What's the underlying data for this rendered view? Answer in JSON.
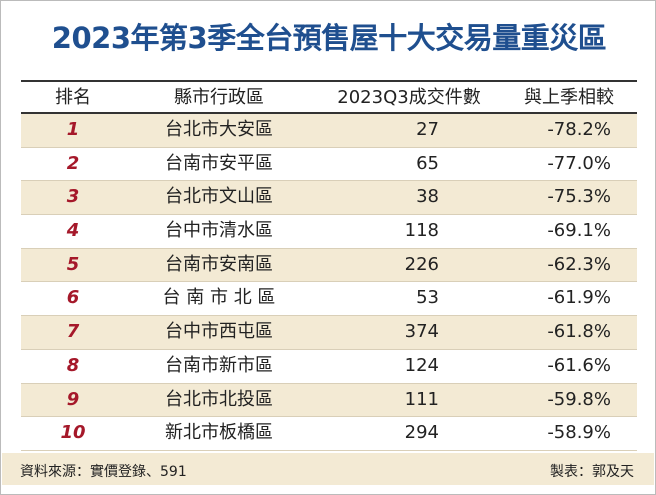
{
  "header": {
    "title": "2023年第3季全台預售屋十大交易量重災區"
  },
  "table": {
    "columns": [
      "排名",
      "縣市行政區",
      "2023Q3成交件數",
      "與上季相較"
    ],
    "rows": [
      [
        "1",
        "台北市大安區",
        "27",
        "-78.2%"
      ],
      [
        "2",
        "台南市安平區",
        "65",
        "-77.0%"
      ],
      [
        "3",
        "台北市文山區",
        "38",
        "-75.3%"
      ],
      [
        "4",
        "台中市清水區",
        "118",
        "-69.1%"
      ],
      [
        "5",
        "台南市安南區",
        "226",
        "-62.3%"
      ],
      [
        "6",
        "台 南 市 北 區",
        "53",
        "-61.9%"
      ],
      [
        "7",
        "台中市西屯區",
        "374",
        "-61.8%"
      ],
      [
        "8",
        "台南市新市區",
        "124",
        "-61.6%"
      ],
      [
        "9",
        "台北市北投區",
        "111",
        "-59.8%"
      ],
      [
        "10",
        "新北市板橋區",
        "294",
        "-58.9%"
      ]
    ]
  },
  "footer": {
    "source": "資料來源：實價登錄、591",
    "credit": "製表：郭及天"
  }
}
